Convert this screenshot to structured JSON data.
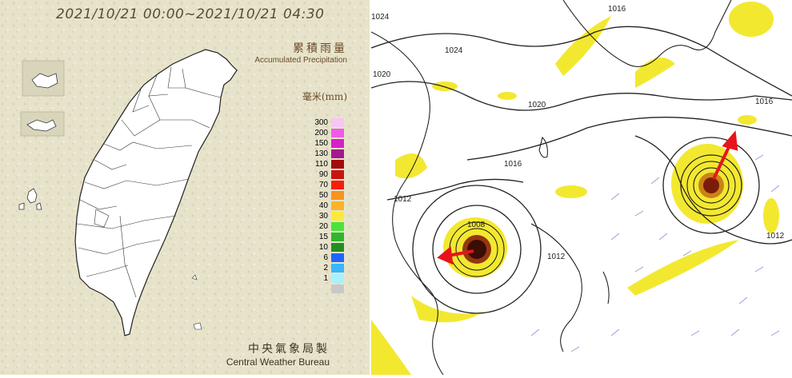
{
  "left_panel": {
    "title": "2021/10/21 00:00~2021/10/21 04:30",
    "legend_title_zh": "累積雨量",
    "legend_title_en": "Accumulated Precipitation",
    "unit": "毫米(mm)",
    "legend": [
      {
        "label": "300",
        "color": "#f7c6f2"
      },
      {
        "label": "200",
        "color": "#ee5be8"
      },
      {
        "label": "150",
        "color": "#d91fc8"
      },
      {
        "label": "130",
        "color": "#a21a8b"
      },
      {
        "label": "110",
        "color": "#a30a0a"
      },
      {
        "label": "90",
        "color": "#c8160f"
      },
      {
        "label": "70",
        "color": "#f51e0c"
      },
      {
        "label": "50",
        "color": "#f7931e"
      },
      {
        "label": "40",
        "color": "#fbb424"
      },
      {
        "label": "30",
        "color": "#fde93a"
      },
      {
        "label": "20",
        "color": "#4be33b"
      },
      {
        "label": "15",
        "color": "#2fb52e"
      },
      {
        "label": "10",
        "color": "#248e20"
      },
      {
        "label": "6",
        "color": "#1f65ff"
      },
      {
        "label": "2",
        "color": "#38b6ff"
      },
      {
        "label": "1",
        "color": "#a9f1ff"
      },
      {
        "label": "",
        "color": "#c8c8c8"
      }
    ],
    "footer_zh": "中央氣象局製",
    "footer_en": "Central Weather Bureau"
  },
  "right_panel": {
    "isobar_labels": [
      "1024",
      "1024",
      "1020",
      "1020",
      "1016",
      "1016",
      "1016",
      "1012",
      "1012",
      "1008",
      "1012"
    ],
    "arrow_color": "#e8141b",
    "precip_color": "#f2e61a"
  }
}
